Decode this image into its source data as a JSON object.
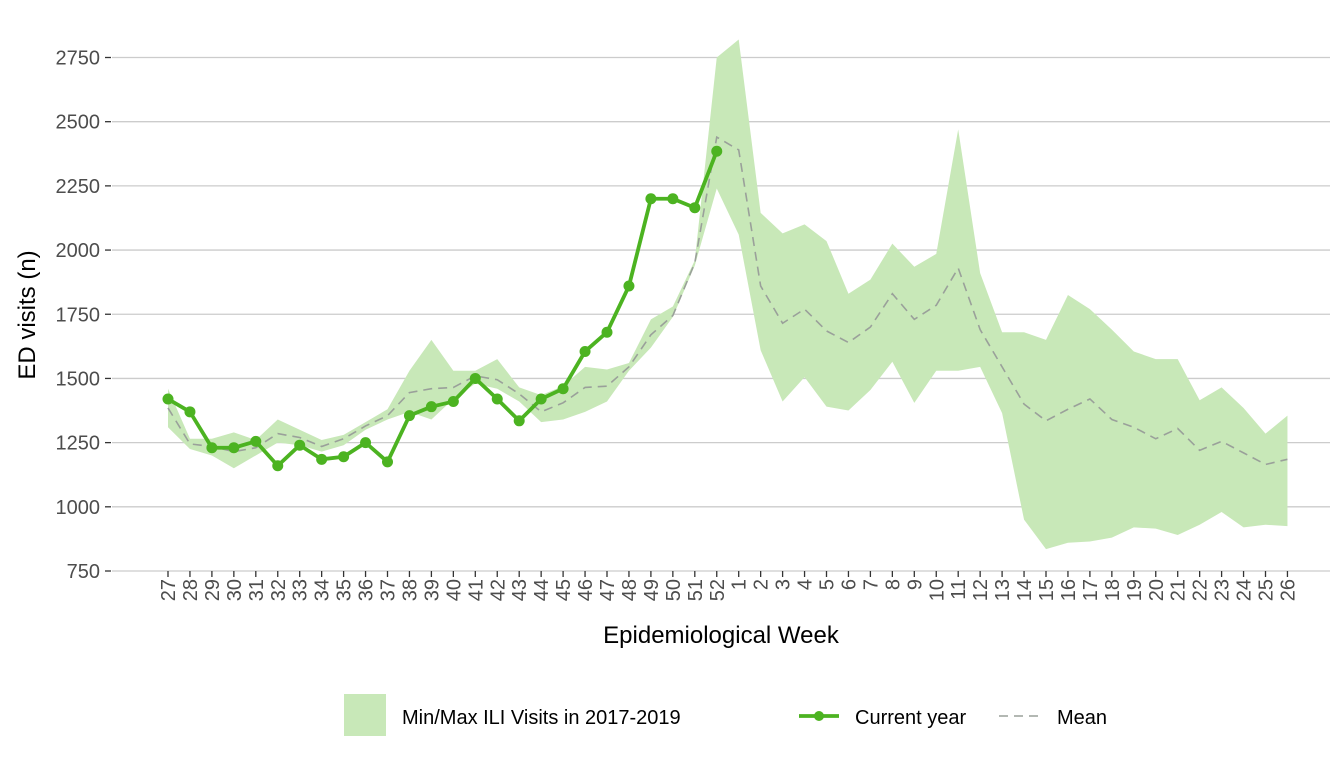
{
  "chart_data": {
    "type": "line",
    "xlabel": "Epidemiological Week",
    "ylabel": "ED visits (n)",
    "ylim": [
      750,
      2820
    ],
    "yticks": [
      750,
      1000,
      1250,
      1500,
      1750,
      2000,
      2250,
      2500,
      2750
    ],
    "grid": true,
    "legend_position": "bottom",
    "categories": [
      "27",
      "28",
      "29",
      "30",
      "31",
      "32",
      "33",
      "34",
      "35",
      "36",
      "37",
      "38",
      "39",
      "40",
      "41",
      "42",
      "43",
      "44",
      "45",
      "46",
      "47",
      "48",
      "49",
      "50",
      "51",
      "52",
      "1",
      "2",
      "3",
      "4",
      "5",
      "6",
      "7",
      "8",
      "9",
      "10",
      "11",
      "12",
      "13",
      "14",
      "15",
      "16",
      "17",
      "18",
      "19",
      "20",
      "21",
      "22",
      "23",
      "24",
      "25",
      "26"
    ],
    "series": [
      {
        "name": "Min/Max ILI Visits in 2017-2019",
        "kind": "band",
        "min": [
          1310,
          1225,
          1200,
          1150,
          1200,
          1250,
          1240,
          1215,
          1240,
          1300,
          1340,
          1370,
          1340,
          1420,
          1480,
          1460,
          1410,
          1330,
          1340,
          1370,
          1410,
          1530,
          1620,
          1740,
          1940,
          2240,
          2060,
          1610,
          1410,
          1505,
          1390,
          1375,
          1455,
          1565,
          1405,
          1530,
          1530,
          1545,
          1365,
          950,
          835,
          860,
          865,
          880,
          920,
          915,
          890,
          930,
          980,
          920,
          930,
          925
        ],
        "max": [
          1460,
          1265,
          1265,
          1290,
          1260,
          1340,
          1300,
          1260,
          1280,
          1330,
          1380,
          1530,
          1650,
          1530,
          1530,
          1575,
          1465,
          1435,
          1470,
          1545,
          1535,
          1560,
          1730,
          1780,
          1960,
          2750,
          2820,
          2145,
          2065,
          2100,
          2035,
          1830,
          1885,
          2025,
          1935,
          1985,
          2470,
          1910,
          1680,
          1680,
          1650,
          1825,
          1770,
          1690,
          1605,
          1575,
          1575,
          1415,
          1465,
          1385,
          1285,
          1355
        ]
      },
      {
        "name": "Current year",
        "kind": "line",
        "values": [
          1420,
          1370,
          1230,
          1230,
          1255,
          1160,
          1240,
          1185,
          1195,
          1250,
          1175,
          1355,
          1390,
          1410,
          1500,
          1420,
          1335,
          1420,
          1460,
          1605,
          1680,
          1860,
          2200,
          2200,
          2165,
          2385,
          null,
          null,
          null,
          null,
          null,
          null,
          null,
          null,
          null,
          null,
          null,
          null,
          null,
          null,
          null,
          null,
          null,
          null,
          null,
          null,
          null,
          null,
          null,
          null,
          null,
          null
        ]
      },
      {
        "name": "Mean",
        "kind": "dashed",
        "values": [
          1385,
          1245,
          1235,
          1215,
          1230,
          1285,
          1270,
          1235,
          1265,
          1315,
          1355,
          1445,
          1460,
          1465,
          1510,
          1495,
          1440,
          1370,
          1405,
          1465,
          1470,
          1545,
          1670,
          1745,
          1950,
          2440,
          2390,
          1860,
          1715,
          1770,
          1685,
          1640,
          1700,
          1830,
          1730,
          1785,
          1930,
          1690,
          1545,
          1400,
          1335,
          1380,
          1420,
          1340,
          1310,
          1265,
          1305,
          1220,
          1255,
          1210,
          1165,
          1185
        ]
      }
    ]
  },
  "colors": {
    "band": "#c8e8b8",
    "current": "#4cb321",
    "mean": "#9aa09a",
    "grid": "#cccccc",
    "tick_text": "#4d4d4d"
  }
}
